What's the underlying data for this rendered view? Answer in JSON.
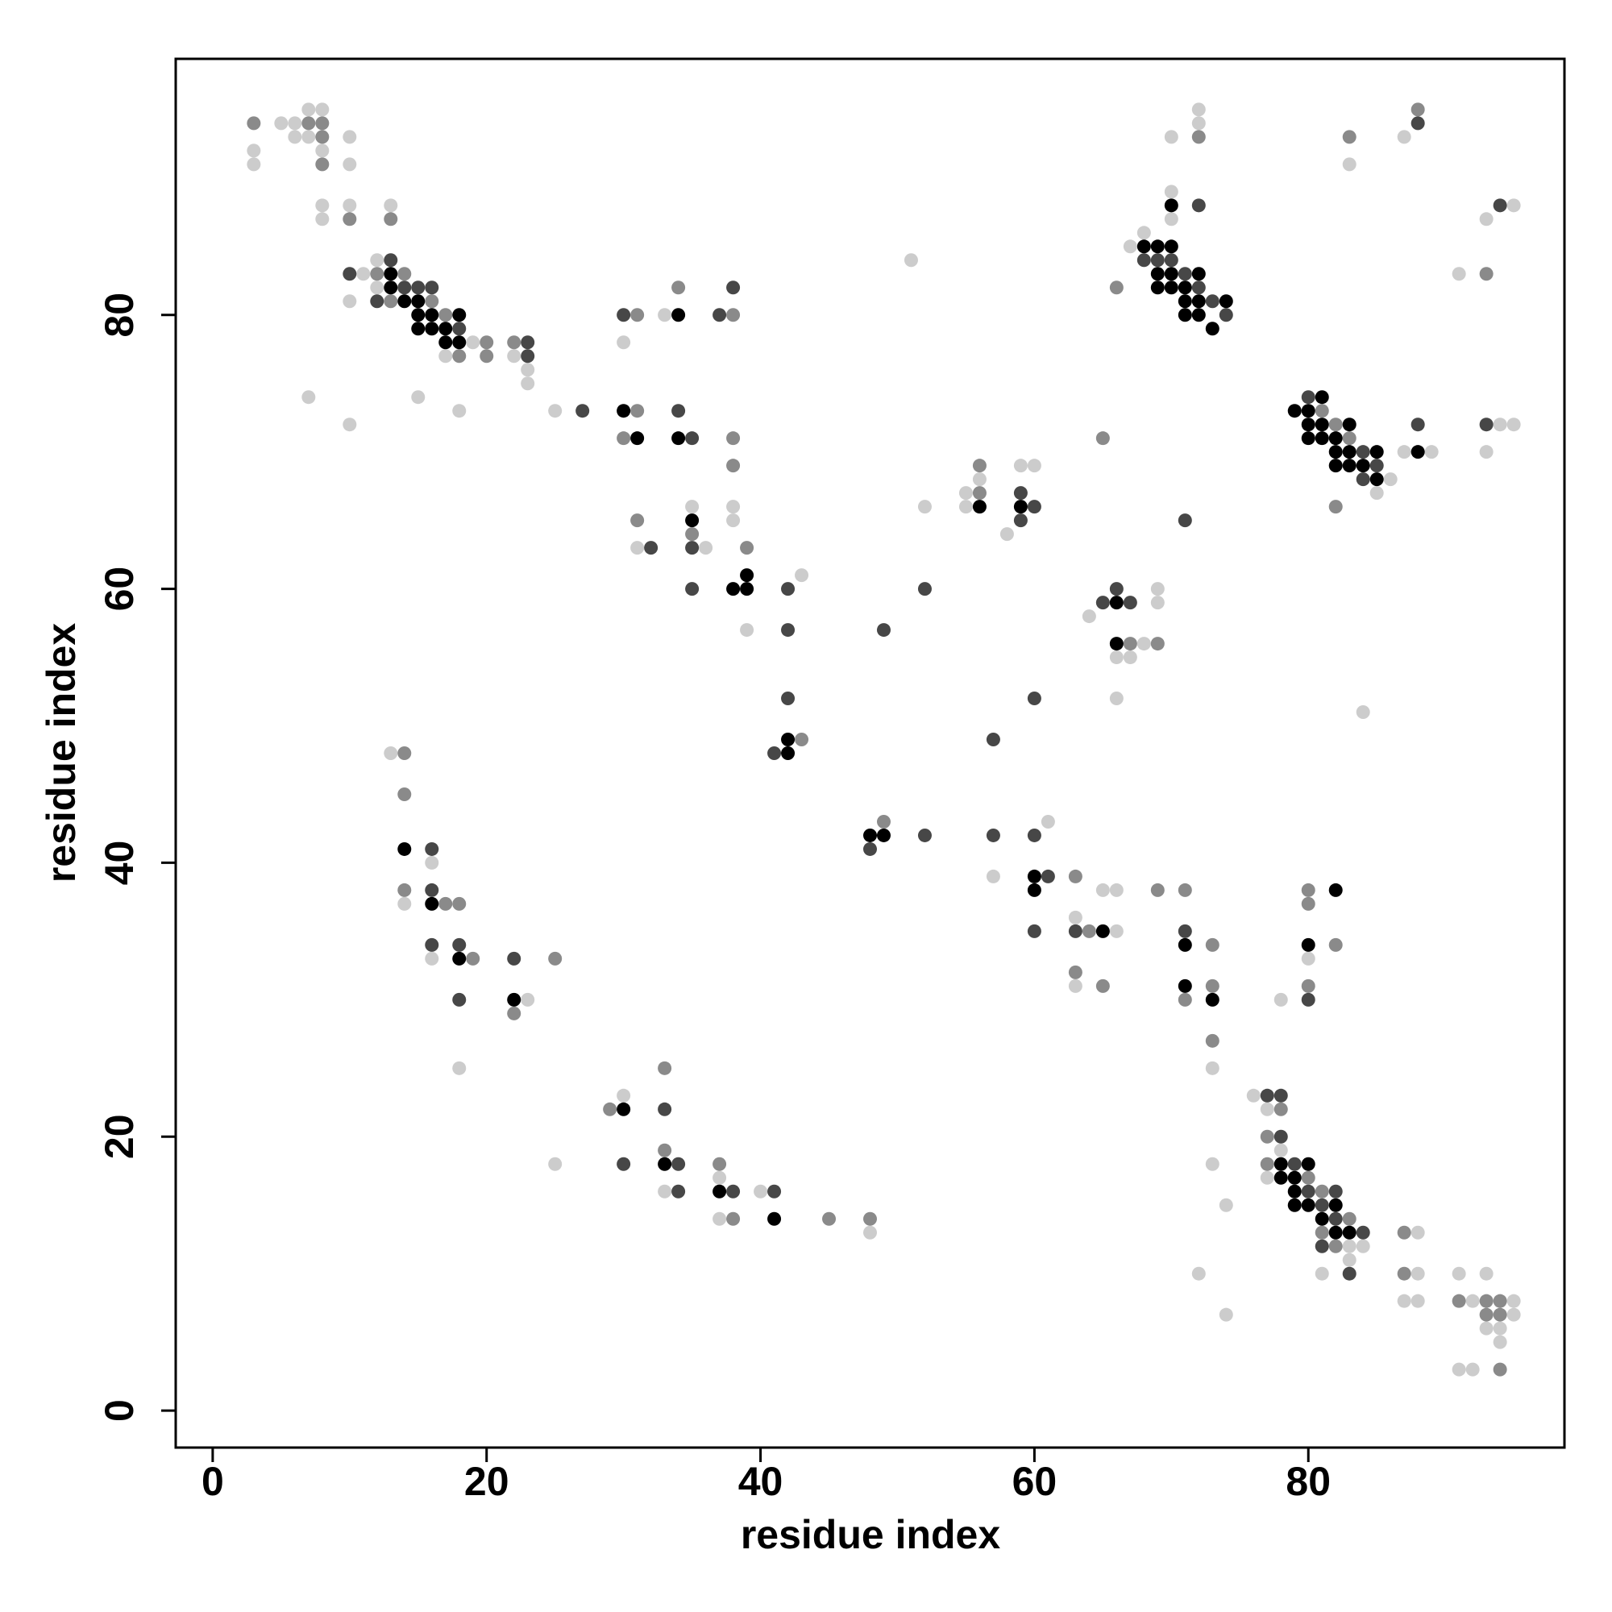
{
  "chart_data": {
    "type": "scatter",
    "xlabel": "residue index",
    "ylabel": "residue index",
    "xlim": [
      -2.7,
      98.7
    ],
    "ylim": [
      -2.7,
      98.7
    ],
    "xticks": [
      0,
      20,
      40,
      60,
      80
    ],
    "yticks": [
      0,
      20,
      40,
      60,
      80
    ],
    "series": [
      {
        "color": "#cccccc",
        "x": [
          3,
          3,
          5,
          6,
          6,
          7,
          7,
          8,
          8,
          10,
          10,
          8,
          8,
          10,
          13,
          10,
          11,
          12,
          12,
          17,
          19,
          22,
          23,
          23,
          7,
          15,
          10,
          18,
          25,
          33,
          30,
          38,
          38,
          35,
          36,
          31,
          39,
          43,
          52,
          51,
          55,
          55,
          56,
          58,
          59,
          60,
          61,
          57,
          64,
          68,
          69,
          69,
          66,
          67,
          66,
          84,
          65,
          66,
          63,
          66,
          63,
          73,
          78,
          80,
          70,
          72,
          72,
          70,
          70,
          67,
          68,
          83,
          87,
          93,
          95,
          91,
          85,
          86,
          87,
          89,
          93,
          94,
          95,
          13,
          16,
          14,
          16,
          23,
          18,
          25,
          30,
          33,
          37,
          37,
          40,
          48,
          76,
          77,
          78,
          77,
          83,
          84,
          83,
          81,
          73,
          74,
          72,
          74,
          88,
          88,
          87,
          88,
          91,
          93,
          92,
          95,
          95,
          93,
          94,
          94,
          91,
          92
        ],
        "y": [
          92,
          91,
          94,
          94,
          93,
          95,
          93,
          95,
          92,
          93,
          91,
          88,
          87,
          88,
          88,
          81,
          83,
          84,
          82,
          77,
          78,
          77,
          76,
          75,
          74,
          74,
          72,
          73,
          73,
          80,
          78,
          66,
          65,
          66,
          63,
          63,
          57,
          61,
          66,
          84,
          67,
          66,
          68,
          64,
          69,
          69,
          43,
          39,
          58,
          56,
          60,
          59,
          55,
          55,
          52,
          51,
          38,
          38,
          36,
          35,
          31,
          25,
          30,
          33,
          93,
          95,
          94,
          89,
          87,
          85,
          86,
          91,
          93,
          87,
          88,
          83,
          67,
          68,
          70,
          70,
          70,
          72,
          72,
          48,
          40,
          37,
          33,
          30,
          25,
          18,
          23,
          16,
          17,
          14,
          16,
          13,
          23,
          22,
          19,
          17,
          12,
          12,
          11,
          10,
          18,
          15,
          10,
          7,
          13,
          10,
          8,
          8,
          10,
          10,
          8,
          8,
          7,
          6,
          6,
          5,
          3,
          3
        ]
      },
      {
        "color": "#8a8a8a",
        "x": [
          3,
          7,
          8,
          8,
          8,
          10,
          13,
          12,
          13,
          14,
          16,
          17,
          18,
          20,
          20,
          22,
          31,
          34,
          38,
          30,
          31,
          38,
          38,
          35,
          31,
          39,
          43,
          49,
          56,
          56,
          67,
          69,
          65,
          63,
          69,
          71,
          64,
          63,
          65,
          73,
          73,
          71,
          73,
          80,
          80,
          80,
          82,
          72,
          66,
          83,
          88,
          93,
          81,
          82,
          83,
          82,
          14,
          14,
          14,
          17,
          18,
          19,
          22,
          25,
          29,
          33,
          33,
          37,
          38,
          45,
          48,
          78,
          77,
          77,
          80,
          81,
          83,
          81,
          82,
          87,
          87,
          91,
          93,
          94,
          93,
          94,
          94
        ],
        "y": [
          94,
          94,
          94,
          93,
          91,
          87,
          87,
          83,
          81,
          83,
          81,
          80,
          77,
          78,
          77,
          78,
          80,
          82,
          80,
          71,
          73,
          71,
          69,
          64,
          65,
          63,
          49,
          43,
          69,
          67,
          56,
          56,
          71,
          39,
          38,
          38,
          35,
          32,
          31,
          34,
          31,
          30,
          27,
          38,
          37,
          31,
          34,
          93,
          82,
          93,
          95,
          83,
          73,
          72,
          71,
          66,
          48,
          45,
          38,
          37,
          37,
          33,
          29,
          33,
          22,
          25,
          19,
          18,
          14,
          14,
          14,
          22,
          20,
          18,
          17,
          16,
          14,
          13,
          12,
          13,
          10,
          8,
          8,
          8,
          7,
          7,
          3
        ]
      },
      {
        "color": "#474747",
        "x": [
          10,
          12,
          13,
          14,
          15,
          16,
          18,
          23,
          23,
          27,
          30,
          37,
          38,
          34,
          35,
          35,
          32,
          35,
          42,
          42,
          42,
          41,
          48,
          52,
          49,
          52,
          59,
          59,
          60,
          57,
          60,
          57,
          60,
          61,
          60,
          65,
          66,
          67,
          71,
          63,
          71,
          80,
          72,
          68,
          69,
          70,
          71,
          72,
          73,
          74,
          88,
          94,
          80,
          84,
          84,
          85,
          88,
          93,
          16,
          16,
          16,
          18,
          18,
          22,
          33,
          30,
          34,
          34,
          38,
          41,
          77,
          78,
          78,
          79,
          80,
          82,
          81,
          82,
          84,
          81,
          83
        ],
        "y": [
          83,
          81,
          84,
          82,
          82,
          82,
          79,
          78,
          77,
          73,
          80,
          80,
          82,
          73,
          71,
          63,
          63,
          60,
          60,
          57,
          52,
          48,
          41,
          42,
          57,
          60,
          67,
          65,
          66,
          49,
          52,
          42,
          42,
          39,
          35,
          59,
          60,
          59,
          65,
          35,
          35,
          30,
          88,
          84,
          84,
          84,
          83,
          82,
          81,
          80,
          94,
          88,
          74,
          70,
          68,
          69,
          72,
          72,
          41,
          38,
          34,
          34,
          30,
          33,
          22,
          18,
          18,
          16,
          16,
          16,
          23,
          23,
          20,
          18,
          16,
          16,
          15,
          14,
          13,
          12,
          10
        ]
      },
      {
        "color": "#000000",
        "x": [
          13,
          13,
          14,
          15,
          15,
          15,
          16,
          16,
          17,
          17,
          18,
          18,
          34,
          30,
          31,
          34,
          35,
          38,
          39,
          39,
          42,
          42,
          48,
          49,
          56,
          59,
          60,
          60,
          66,
          66,
          65,
          71,
          71,
          73,
          80,
          82,
          70,
          68,
          69,
          69,
          69,
          70,
          70,
          70,
          71,
          71,
          71,
          72,
          72,
          72,
          73,
          74,
          79,
          80,
          80,
          80,
          81,
          81,
          81,
          82,
          82,
          82,
          83,
          83,
          83,
          84,
          85,
          85,
          88,
          14,
          16,
          18,
          22,
          30,
          33,
          37,
          41,
          78,
          80,
          78,
          79,
          79,
          79,
          80,
          82,
          81,
          82,
          83
        ],
        "y": [
          83,
          82,
          81,
          81,
          80,
          79,
          80,
          79,
          79,
          78,
          80,
          78,
          80,
          73,
          71,
          71,
          65,
          60,
          61,
          60,
          49,
          48,
          42,
          42,
          66,
          66,
          39,
          38,
          59,
          56,
          35,
          34,
          31,
          30,
          34,
          38,
          88,
          85,
          85,
          83,
          82,
          85,
          83,
          82,
          82,
          81,
          80,
          83,
          81,
          80,
          79,
          81,
          73,
          73,
          72,
          71,
          74,
          72,
          71,
          71,
          70,
          69,
          72,
          70,
          69,
          69,
          70,
          68,
          70,
          41,
          37,
          33,
          30,
          22,
          18,
          16,
          14,
          18,
          18,
          17,
          17,
          16,
          15,
          15,
          15,
          14,
          13,
          13
        ]
      }
    ]
  }
}
